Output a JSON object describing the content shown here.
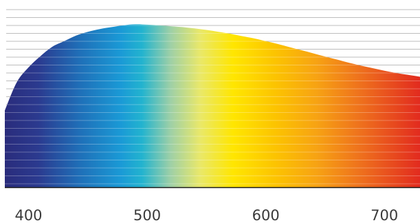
{
  "chart_data": {
    "type": "area",
    "title": "",
    "xlabel": "",
    "ylabel": "",
    "xlim": [
      380,
      730
    ],
    "ylim": [
      0,
      1
    ],
    "grid": true,
    "x_ticks": [
      {
        "value": 400,
        "label": "400"
      },
      {
        "value": 500,
        "label": "500"
      },
      {
        "value": 600,
        "label": "600"
      },
      {
        "value": 700,
        "label": "700"
      }
    ],
    "series": [
      {
        "x": [
          380,
          390,
          400,
          410,
          420,
          430,
          440,
          450,
          460,
          470,
          480,
          490,
          500,
          510,
          520,
          530,
          540,
          550,
          560,
          570,
          580,
          590,
          600,
          610,
          620,
          630,
          640,
          650,
          660,
          670,
          680,
          690,
          700,
          710,
          720,
          730
        ],
        "values": [
          0.41,
          0.56,
          0.64,
          0.7,
          0.75,
          0.78,
          0.81,
          0.83,
          0.845,
          0.855,
          0.865,
          0.87,
          0.868,
          0.865,
          0.86,
          0.855,
          0.848,
          0.84,
          0.83,
          0.82,
          0.807,
          0.795,
          0.78,
          0.765,
          0.748,
          0.732,
          0.715,
          0.698,
          0.682,
          0.665,
          0.65,
          0.636,
          0.622,
          0.61,
          0.6,
          0.59
        ]
      }
    ],
    "colors": {
      "gradient": [
        {
          "at": 0.0,
          "color": "#2a2c7c"
        },
        {
          "at": 0.08,
          "color": "#2b3a8f"
        },
        {
          "at": 0.18,
          "color": "#1f6fb8"
        },
        {
          "at": 0.28,
          "color": "#1a9ad6"
        },
        {
          "at": 0.33,
          "color": "#22b3cf"
        },
        {
          "at": 0.4,
          "color": "#9fd0a6"
        },
        {
          "at": 0.47,
          "color": "#e9e86a"
        },
        {
          "at": 0.55,
          "color": "#ffe600"
        },
        {
          "at": 0.65,
          "color": "#fcc400"
        },
        {
          "at": 0.75,
          "color": "#f7a313"
        },
        {
          "at": 0.86,
          "color": "#ee6f1d"
        },
        {
          "at": 1.0,
          "color": "#e22b1f"
        }
      ],
      "grid_line": "#bdbdbd",
      "baseline": "#1a1a1a"
    }
  }
}
